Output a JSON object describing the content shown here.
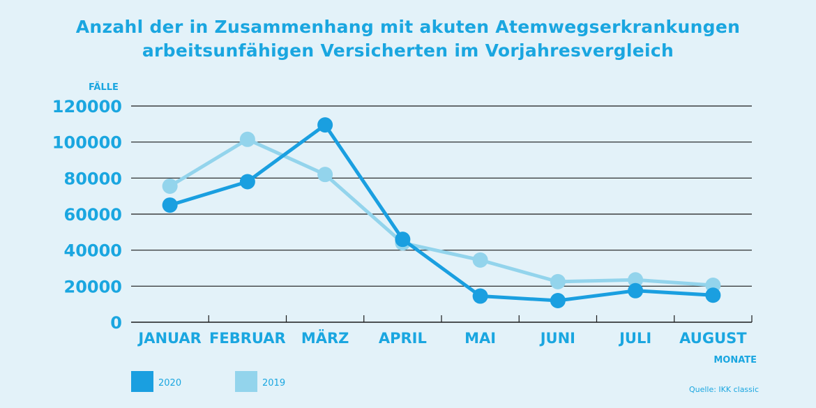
{
  "title": {
    "line1": "Anzahl der in Zusammenhang mit akuten Atemwegserkrankungen",
    "line2": "arbeitsunfähigen Versicherten im Vorjahresvergleich"
  },
  "source": "Quelle: IKK classic",
  "colors": {
    "background": "#e3f2f9",
    "text": "#1aa6e0",
    "series2020": "#1a9fe0",
    "series2019": "#93d4ec",
    "grid": "#1a1a1a"
  },
  "chart_data": {
    "type": "line",
    "ylabel": "FÄLLE",
    "xlabel": "MONATE",
    "ylim": [
      0,
      120000
    ],
    "yticks": [
      "0",
      "20000",
      "40000",
      "60000",
      "80000",
      "100000",
      "120000"
    ],
    "categories": [
      "JANUAR",
      "FEBRUAR",
      "MÄRZ",
      "APRIL",
      "MAI",
      "JUNI",
      "JULI",
      "AUGUST"
    ],
    "grid": true,
    "legend_position": "bottom-left",
    "series": [
      {
        "name": "2019",
        "color": "#93d4ec",
        "values": [
          75500,
          101500,
          82000,
          44000,
          34500,
          22500,
          23500,
          20500
        ]
      },
      {
        "name": "2020",
        "color": "#1a9fe0",
        "values": [
          65000,
          78000,
          109500,
          46000,
          14500,
          12000,
          17500,
          15000
        ]
      }
    ]
  }
}
